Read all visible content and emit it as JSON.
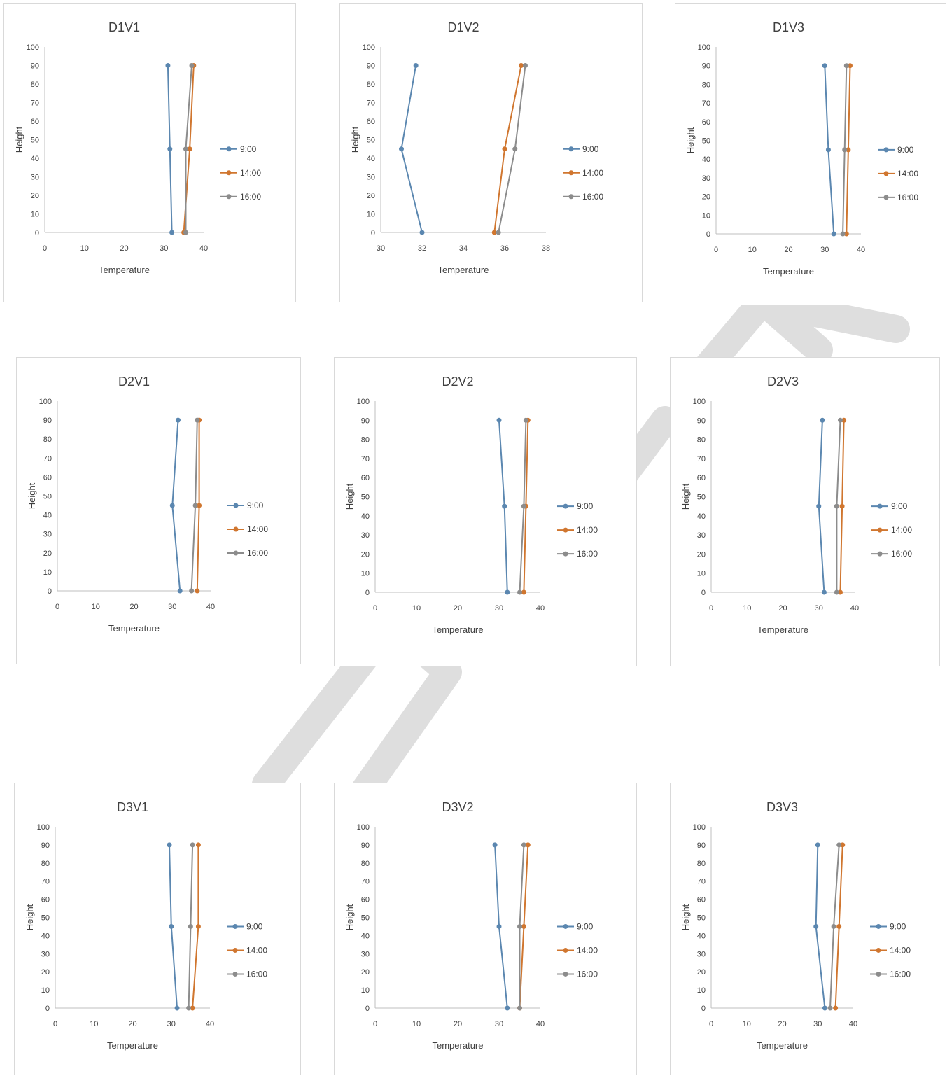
{
  "colors": {
    "series_9": "#5b87b0",
    "series_14": "#d0762f",
    "series_16": "#8c8c8c",
    "axis": "#bfbfbf",
    "watermark": "#dedede"
  },
  "chart_data": [
    {
      "type": "line",
      "title": "D1V1",
      "xlabel": "Temperature",
      "ylabel": "Height",
      "xlim": [
        0,
        40
      ],
      "xticks": [
        0,
        10,
        20,
        30,
        40
      ],
      "ylim": [
        0,
        100
      ],
      "yticks": [
        0,
        10,
        20,
        30,
        40,
        50,
        60,
        70,
        80,
        90,
        100
      ],
      "legend_position": "right",
      "series": [
        {
          "name": "9:00",
          "x": [
            32,
            31.5,
            31
          ],
          "y": [
            0,
            45,
            90
          ]
        },
        {
          "name": "14:00",
          "x": [
            35,
            36.5,
            37.5
          ],
          "y": [
            0,
            45,
            90
          ]
        },
        {
          "name": "16:00",
          "x": [
            35.5,
            35.5,
            37
          ],
          "y": [
            0,
            45,
            90
          ]
        }
      ]
    },
    {
      "type": "line",
      "title": "D1V2",
      "xlabel": "Temperature",
      "ylabel": "Height",
      "xlim": [
        30,
        38
      ],
      "xticks": [
        30,
        32,
        34,
        36,
        38
      ],
      "ylim": [
        0,
        100
      ],
      "yticks": [
        0,
        10,
        20,
        30,
        40,
        50,
        60,
        70,
        80,
        90,
        100
      ],
      "legend_position": "right",
      "series": [
        {
          "name": "9:00",
          "x": [
            32,
            31,
            31.7
          ],
          "y": [
            0,
            45,
            90
          ]
        },
        {
          "name": "14:00",
          "x": [
            35.5,
            36,
            36.8
          ],
          "y": [
            0,
            45,
            90
          ]
        },
        {
          "name": "16:00",
          "x": [
            35.7,
            36.5,
            37
          ],
          "y": [
            0,
            45,
            90
          ]
        }
      ]
    },
    {
      "type": "line",
      "title": "D1V3",
      "xlabel": "Temperature",
      "ylabel": "Height",
      "xlim": [
        0,
        40
      ],
      "xticks": [
        0,
        10,
        20,
        30,
        40
      ],
      "ylim": [
        0,
        100
      ],
      "yticks": [
        0,
        10,
        20,
        30,
        40,
        50,
        60,
        70,
        80,
        90,
        100
      ],
      "legend_position": "right",
      "series": [
        {
          "name": "9:00",
          "x": [
            32.5,
            31,
            30
          ],
          "y": [
            0,
            45,
            90
          ]
        },
        {
          "name": "14:00",
          "x": [
            36,
            36.5,
            37
          ],
          "y": [
            0,
            45,
            90
          ]
        },
        {
          "name": "16:00",
          "x": [
            35,
            35.5,
            36
          ],
          "y": [
            0,
            45,
            90
          ]
        }
      ]
    },
    {
      "type": "line",
      "title": "D2V1",
      "xlabel": "Temperature",
      "ylabel": "Height",
      "xlim": [
        0,
        40
      ],
      "xticks": [
        0,
        10,
        20,
        30,
        40
      ],
      "ylim": [
        0,
        100
      ],
      "yticks": [
        0,
        10,
        20,
        30,
        40,
        50,
        60,
        70,
        80,
        90,
        100
      ],
      "legend_position": "right",
      "series": [
        {
          "name": "9:00",
          "x": [
            32,
            30,
            31.5
          ],
          "y": [
            0,
            45,
            90
          ]
        },
        {
          "name": "14:00",
          "x": [
            36.5,
            37,
            37
          ],
          "y": [
            0,
            45,
            90
          ]
        },
        {
          "name": "16:00",
          "x": [
            35,
            36,
            36.5
          ],
          "y": [
            0,
            45,
            90
          ]
        }
      ]
    },
    {
      "type": "line",
      "title": "D2V2",
      "xlabel": "Temperature",
      "ylabel": "Height",
      "xlim": [
        0,
        40
      ],
      "xticks": [
        0,
        10,
        20,
        30,
        40
      ],
      "ylim": [
        0,
        100
      ],
      "yticks": [
        0,
        10,
        20,
        30,
        40,
        50,
        60,
        70,
        80,
        90,
        100
      ],
      "legend_position": "right",
      "series": [
        {
          "name": "9:00",
          "x": [
            32,
            31.3,
            30
          ],
          "y": [
            0,
            45,
            90
          ]
        },
        {
          "name": "14:00",
          "x": [
            36,
            36.5,
            37
          ],
          "y": [
            0,
            45,
            90
          ]
        },
        {
          "name": "16:00",
          "x": [
            35,
            36,
            36.5
          ],
          "y": [
            0,
            45,
            90
          ]
        }
      ]
    },
    {
      "type": "line",
      "title": "D2V3",
      "xlabel": "Temperature",
      "ylabel": "Height",
      "xlim": [
        0,
        40
      ],
      "xticks": [
        0,
        10,
        20,
        30,
        40
      ],
      "ylim": [
        0,
        100
      ],
      "yticks": [
        0,
        10,
        20,
        30,
        40,
        50,
        60,
        70,
        80,
        90,
        100
      ],
      "legend_position": "right",
      "series": [
        {
          "name": "9:00",
          "x": [
            31.5,
            30,
            31
          ],
          "y": [
            0,
            45,
            90
          ]
        },
        {
          "name": "14:00",
          "x": [
            36,
            36.5,
            37
          ],
          "y": [
            0,
            45,
            90
          ]
        },
        {
          "name": "16:00",
          "x": [
            35,
            35,
            36
          ],
          "y": [
            0,
            45,
            90
          ]
        }
      ]
    },
    {
      "type": "line",
      "title": "D3V1",
      "xlabel": "Temperature",
      "ylabel": "Height",
      "xlim": [
        0,
        40
      ],
      "xticks": [
        0,
        10,
        20,
        30,
        40
      ],
      "ylim": [
        0,
        100
      ],
      "yticks": [
        0,
        10,
        20,
        30,
        40,
        50,
        60,
        70,
        80,
        90,
        100
      ],
      "legend_position": "right",
      "series": [
        {
          "name": "9:00",
          "x": [
            31.5,
            30,
            29.5
          ],
          "y": [
            0,
            45,
            90
          ]
        },
        {
          "name": "14:00",
          "x": [
            35.5,
            37,
            37
          ],
          "y": [
            0,
            45,
            90
          ]
        },
        {
          "name": "16:00",
          "x": [
            34.5,
            35,
            35.5
          ],
          "y": [
            0,
            45,
            90
          ]
        }
      ]
    },
    {
      "type": "line",
      "title": "D3V2",
      "xlabel": "Temperature",
      "ylabel": "Height",
      "xlim": [
        0,
        40
      ],
      "xticks": [
        0,
        10,
        20,
        30,
        40
      ],
      "ylim": [
        0,
        100
      ],
      "yticks": [
        0,
        10,
        20,
        30,
        40,
        50,
        60,
        70,
        80,
        90,
        100
      ],
      "legend_position": "right",
      "series": [
        {
          "name": "9:00",
          "x": [
            32,
            30,
            29
          ],
          "y": [
            0,
            45,
            90
          ]
        },
        {
          "name": "14:00",
          "x": [
            35,
            36,
            37
          ],
          "y": [
            0,
            45,
            90
          ]
        },
        {
          "name": "16:00",
          "x": [
            35,
            35,
            36
          ],
          "y": [
            0,
            45,
            90
          ]
        }
      ]
    },
    {
      "type": "line",
      "title": "D3V3",
      "xlabel": "Temperature",
      "ylabel": "Height",
      "xlim": [
        0,
        40
      ],
      "xticks": [
        0,
        10,
        20,
        30,
        40
      ],
      "ylim": [
        0,
        100
      ],
      "yticks": [
        0,
        10,
        20,
        30,
        40,
        50,
        60,
        70,
        80,
        90,
        100
      ],
      "legend_position": "right",
      "series": [
        {
          "name": "9:00",
          "x": [
            32,
            29.5,
            30
          ],
          "y": [
            0,
            45,
            90
          ]
        },
        {
          "name": "14:00",
          "x": [
            35,
            36,
            37
          ],
          "y": [
            0,
            45,
            90
          ]
        },
        {
          "name": "16:00",
          "x": [
            33.5,
            34.5,
            36
          ],
          "y": [
            0,
            45,
            90
          ]
        }
      ]
    }
  ]
}
